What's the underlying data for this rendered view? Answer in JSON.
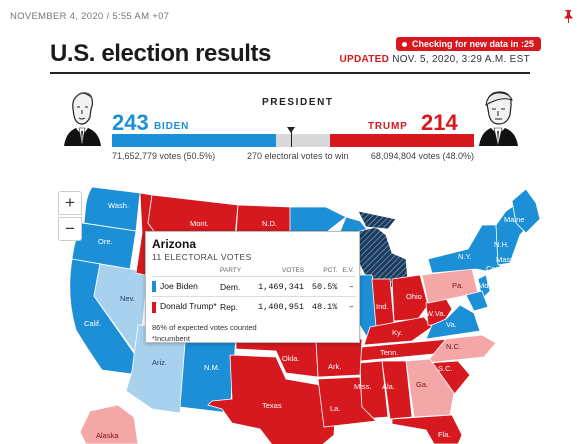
{
  "header": {
    "dateline": "NOVEMBER 4, 2020 / 5:55 AM +07",
    "live_badge": "Checking for new data in :25",
    "title": "U.S. election results",
    "updated_prefix": "UPDATED",
    "updated_time": "NOV. 5, 2020, 3:29 A.M. EST"
  },
  "race": {
    "label": "PRESIDENT",
    "dem": {
      "name": "BIDEN",
      "electoral_votes": "243",
      "votes_text": "71,652,779 votes (50.5%)",
      "electoral_value": 243
    },
    "rep": {
      "name": "TRUMP",
      "electoral_votes": "214",
      "votes_text": "68,094,804 votes (48.0%)",
      "electoral_value": 214
    },
    "total_electoral": 538,
    "win_text": "270 electoral votes to win"
  },
  "colors": {
    "dem": "#1c8fd6",
    "dem_leaning": "#a8d1ee",
    "rep": "#d6191f",
    "rep_leaning": "#f4a7a7",
    "undecided": "#d9d9d9",
    "hatched": "#1b3c5c"
  },
  "map": {
    "zoom_in": "+",
    "zoom_out": "−",
    "labels": {
      "wash": "Wash.",
      "ore": "Ore.",
      "calif": "Calif.",
      "nev": "Nev.",
      "ariz": "Ariz.",
      "nm": "N.M.",
      "mont": "Mont.",
      "nd": "N.D.",
      "okla": "Okla.",
      "texas": "Texas",
      "ark": "Ark.",
      "la": "La.",
      "miss": "Miss.",
      "ala": "Ala.",
      "ga": "Ga.",
      "fla": "Fla.",
      "tenn": "Tenn.",
      "ky": "Ky.",
      "ind": "Ind.",
      "ohio": "Ohio",
      "wva": "W.Va.",
      "va": "Va.",
      "nc": "N.C.",
      "sc": "S.C.",
      "pa": "Pa.",
      "ny": "N.Y.",
      "maine": "Maine",
      "nh": "N.H.",
      "mass": "Mass.",
      "conn": "Conn.",
      "md": "Md.",
      "alaska": "Alaska"
    }
  },
  "tooltip": {
    "state": "Arizona",
    "electoral": "11 ELECTORAL VOTES",
    "headers": {
      "party": "PARTY",
      "votes": "VOTES",
      "pct": "PCT.",
      "ev": "E.V."
    },
    "rows": [
      {
        "candidate": "Joe Biden",
        "party": "Dem.",
        "votes": "1,469,341",
        "pct": "50.5%",
        "ev": "–"
      },
      {
        "candidate": "Donald Trump*",
        "party": "Rep.",
        "votes": "1,400,951",
        "pct": "48.1%",
        "ev": "–"
      }
    ],
    "expected": "86% of expected votes counted",
    "incumbent": "*Incumbent"
  }
}
